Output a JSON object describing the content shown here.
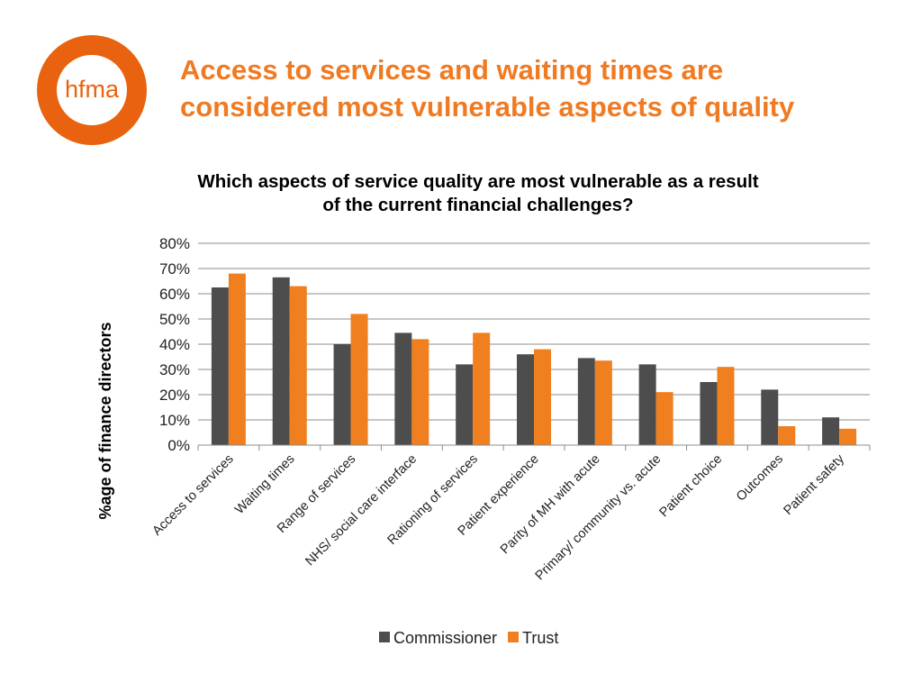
{
  "logo": {
    "text": "hfma",
    "ring_color": "#e8620f"
  },
  "slide_title": {
    "line1": "Access to services and waiting times are",
    "line2": "considered most vulnerable aspects of quality",
    "color": "#f07a22"
  },
  "chart_data": {
    "type": "bar",
    "title": [
      "Which aspects of service quality are most vulnerable as a result",
      "of the current financial challenges?"
    ],
    "xlabel": "",
    "ylabel": "%age of finance directors",
    "ylim": [
      0,
      80
    ],
    "y_ticks": [
      "0%",
      "10%",
      "20%",
      "30%",
      "40%",
      "50%",
      "60%",
      "70%",
      "80%"
    ],
    "grid": true,
    "legend_position": "bottom",
    "categories": [
      "Access to services",
      "Waiting times",
      "Range of services",
      "NHS/ social care interface",
      "Rationing of services",
      "Patient experience",
      "Parity of MH with acute",
      "Primary/ community vs. acute",
      "Patient choice",
      "Outcomes",
      "Patient safety"
    ],
    "series": [
      {
        "name": "Commissioner",
        "color": "#4d4d4d",
        "values": [
          62.5,
          66.5,
          40,
          44.5,
          32,
          36,
          34.5,
          32,
          25,
          22,
          11
        ]
      },
      {
        "name": "Trust",
        "color": "#f07f1f",
        "values": [
          68,
          63,
          52,
          42,
          44.5,
          38,
          33.5,
          21,
          31,
          7.5,
          6.5
        ]
      }
    ]
  }
}
